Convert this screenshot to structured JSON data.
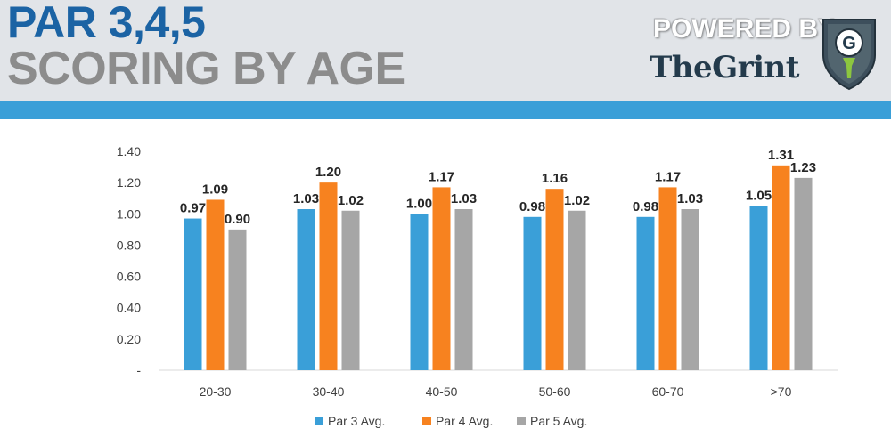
{
  "header": {
    "title_line1": "PAR 3,4,5",
    "title_line2": "SCORING BY AGE",
    "powered_by": "POWERED BY:",
    "brand": "TheGrint",
    "logo_letter": "G",
    "colors": {
      "title_blue": "#1b63a4",
      "title_gray": "#8c8c8c",
      "band_blue": "#3a9fd8"
    }
  },
  "chart_data": {
    "type": "bar",
    "categories": [
      "20-30",
      "30-40",
      "40-50",
      "50-60",
      "60-70",
      ">70"
    ],
    "series": [
      {
        "name": "Par 3 Avg.",
        "color": "#3a9fd8",
        "values": [
          0.97,
          1.03,
          1.0,
          0.98,
          0.98,
          1.05
        ],
        "labels": [
          "0.97",
          "1.03",
          "1.00",
          "0.98",
          "0.98",
          "1.05"
        ]
      },
      {
        "name": "Par 4 Avg.",
        "color": "#f7821f",
        "values": [
          1.09,
          1.2,
          1.17,
          1.16,
          1.17,
          1.31
        ],
        "labels": [
          "1.09",
          "1.20",
          "1.17",
          "1.16",
          "1.17",
          "1.31"
        ]
      },
      {
        "name": "Par 5 Avg.",
        "color": "#a6a6a6",
        "values": [
          0.9,
          1.02,
          1.03,
          1.02,
          1.03,
          1.23
        ],
        "labels": [
          "0.90",
          "1.02",
          "1.03",
          "1.02",
          "1.03",
          "1.23"
        ]
      }
    ],
    "yticks": [
      "-",
      "0.20",
      "0.40",
      "0.60",
      "0.80",
      "1.00",
      "1.20",
      "1.40"
    ],
    "ylim": [
      0,
      1.4
    ],
    "grid": false,
    "legend_position": "bottom"
  }
}
